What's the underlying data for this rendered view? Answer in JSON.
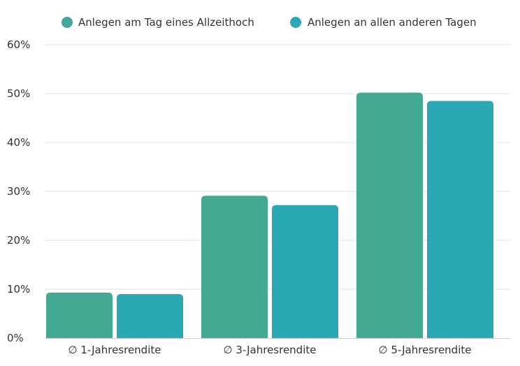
{
  "chart_data": {
    "type": "bar",
    "title": "",
    "xlabel": "",
    "ylabel": "",
    "categories": [
      "∅ 1-Jahresrendite",
      "∅ 3-Jahresrendite",
      "∅ 5-Jahresrendite"
    ],
    "series": [
      {
        "name": "Anlegen am Tag eines Allzeithoch",
        "color": "#44a993",
        "values": [
          9.3,
          29.1,
          50.2
        ]
      },
      {
        "name": "Anlegen an allen anderen Tagen",
        "color": "#2aa9b4",
        "values": [
          9.0,
          27.2,
          48.5
        ]
      }
    ],
    "ylim": [
      0,
      60
    ],
    "yticks": [
      0,
      10,
      20,
      30,
      40,
      50,
      60
    ],
    "ytick_labels": [
      "0%",
      "10%",
      "20%",
      "30%",
      "40%",
      "50%",
      "60%"
    ],
    "grid": true,
    "legend_position": "top"
  }
}
